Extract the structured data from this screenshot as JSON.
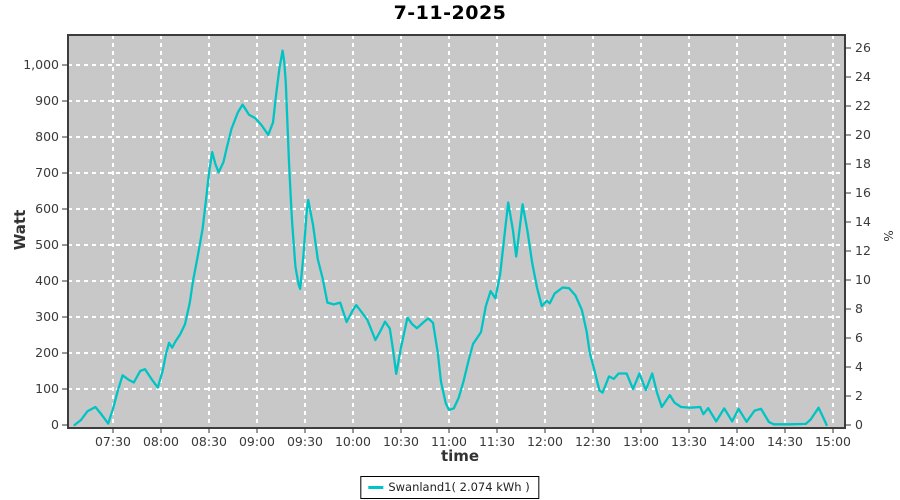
{
  "title": "7-11-2025",
  "legend": {
    "label": "Swanland1( 2.074 kWh )",
    "line_color": "#00c4c4"
  },
  "colors": {
    "page_bg": "#ffffff",
    "plot_bg": "#c8c8c8",
    "grid": "#ffffff",
    "line": "#00c4c4",
    "tick_text": "#3a3a3a",
    "border": "#3d3d3d"
  },
  "chart_data": {
    "type": "line",
    "title": "7-11-2025",
    "xlabel": "time",
    "ylabel_left": "Watt",
    "ylabel_right": "%",
    "grid": true,
    "legend_position": "bottom-center",
    "x_ticks": [
      "07:30",
      "08:00",
      "08:30",
      "09:00",
      "09:30",
      "10:00",
      "10:30",
      "11:00",
      "11:30",
      "12:00",
      "12:30",
      "13:00",
      "13:30",
      "14:00",
      "14:30",
      "15:00"
    ],
    "y_ticks_left": [
      "0",
      "100",
      "200",
      "300",
      "400",
      "500",
      "600",
      "700",
      "800",
      "900",
      "1,000"
    ],
    "y_ticks_right": [
      "0",
      "2",
      "4",
      "6",
      "8",
      "10",
      "12",
      "14",
      "16",
      "18",
      "20",
      "22",
      "24",
      "26"
    ],
    "x_range": [
      "07:02",
      "15:07"
    ],
    "ylim_left": [
      0,
      1086
    ],
    "ylim_right": [
      0,
      27
    ],
    "series": [
      {
        "name": "Swanland1( 2.074 kWh )",
        "color": "#00c4c4",
        "units": "Watt",
        "points": [
          [
            "07:06",
            0
          ],
          [
            "07:10",
            14
          ],
          [
            "07:14",
            38
          ],
          [
            "07:19",
            50
          ],
          [
            "07:23",
            28
          ],
          [
            "07:27",
            4
          ],
          [
            "07:30",
            45
          ],
          [
            "07:33",
            95
          ],
          [
            "07:36",
            138
          ],
          [
            "07:40",
            125
          ],
          [
            "07:43",
            118
          ],
          [
            "07:47",
            150
          ],
          [
            "07:50",
            155
          ],
          [
            "07:54",
            128
          ],
          [
            "07:58",
            104
          ],
          [
            "08:01",
            150
          ],
          [
            "08:03",
            195
          ],
          [
            "08:05",
            228
          ],
          [
            "08:07",
            215
          ],
          [
            "08:09",
            232
          ],
          [
            "08:12",
            252
          ],
          [
            "08:15",
            280
          ],
          [
            "08:18",
            340
          ],
          [
            "08:20",
            400
          ],
          [
            "08:23",
            470
          ],
          [
            "08:26",
            545
          ],
          [
            "08:28",
            620
          ],
          [
            "08:30",
            700
          ],
          [
            "08:32",
            758
          ],
          [
            "08:34",
            725
          ],
          [
            "08:36",
            702
          ],
          [
            "08:39",
            730
          ],
          [
            "08:41",
            768
          ],
          [
            "08:44",
            822
          ],
          [
            "08:48",
            868
          ],
          [
            "08:51",
            890
          ],
          [
            "08:55",
            862
          ],
          [
            "08:59",
            852
          ],
          [
            "09:03",
            832
          ],
          [
            "09:07",
            806
          ],
          [
            "09:10",
            840
          ],
          [
            "09:12",
            920
          ],
          [
            "09:14",
            990
          ],
          [
            "09:16",
            1040
          ],
          [
            "09:17",
            1010
          ],
          [
            "09:18",
            950
          ],
          [
            "09:19",
            840
          ],
          [
            "09:20",
            730
          ],
          [
            "09:21",
            640
          ],
          [
            "09:22",
            560
          ],
          [
            "09:24",
            440
          ],
          [
            "09:26",
            390
          ],
          [
            "09:27",
            378
          ],
          [
            "09:29",
            470
          ],
          [
            "09:31",
            590
          ],
          [
            "09:32",
            625
          ],
          [
            "09:35",
            556
          ],
          [
            "09:38",
            460
          ],
          [
            "09:41",
            408
          ],
          [
            "09:44",
            340
          ],
          [
            "09:48",
            335
          ],
          [
            "09:52",
            340
          ],
          [
            "09:56",
            286
          ],
          [
            "10:00",
            320
          ],
          [
            "10:02",
            333
          ],
          [
            "10:06",
            310
          ],
          [
            "10:09",
            292
          ],
          [
            "10:14",
            236
          ],
          [
            "10:17",
            260
          ],
          [
            "10:20",
            287
          ],
          [
            "10:23",
            268
          ],
          [
            "10:25",
            210
          ],
          [
            "10:27",
            142
          ],
          [
            "10:30",
            215
          ],
          [
            "10:34",
            298
          ],
          [
            "10:37",
            280
          ],
          [
            "10:40",
            269
          ],
          [
            "10:44",
            285
          ],
          [
            "10:47",
            296
          ],
          [
            "10:50",
            284
          ],
          [
            "10:53",
            200
          ],
          [
            "10:55",
            120
          ],
          [
            "10:58",
            60
          ],
          [
            "11:00",
            42
          ],
          [
            "11:03",
            46
          ],
          [
            "11:06",
            75
          ],
          [
            "11:09",
            120
          ],
          [
            "11:12",
            175
          ],
          [
            "11:15",
            225
          ],
          [
            "11:17",
            238
          ],
          [
            "11:20",
            258
          ],
          [
            "11:23",
            330
          ],
          [
            "11:26",
            372
          ],
          [
            "11:29",
            352
          ],
          [
            "11:32",
            420
          ],
          [
            "11:35",
            540
          ],
          [
            "11:37",
            618
          ],
          [
            "11:40",
            540
          ],
          [
            "11:42",
            468
          ],
          [
            "11:44",
            540
          ],
          [
            "11:46",
            613
          ],
          [
            "11:49",
            540
          ],
          [
            "11:52",
            450
          ],
          [
            "11:55",
            382
          ],
          [
            "11:58",
            330
          ],
          [
            "12:01",
            345
          ],
          [
            "12:03",
            338
          ],
          [
            "12:06",
            365
          ],
          [
            "12:11",
            382
          ],
          [
            "12:15",
            380
          ],
          [
            "12:19",
            360
          ],
          [
            "12:23",
            320
          ],
          [
            "12:26",
            260
          ],
          [
            "12:28",
            200
          ],
          [
            "12:31",
            150
          ],
          [
            "12:34",
            96
          ],
          [
            "12:36",
            90
          ],
          [
            "12:40",
            135
          ],
          [
            "12:43",
            128
          ],
          [
            "12:46",
            143
          ],
          [
            "12:51",
            143
          ],
          [
            "12:55",
            100
          ],
          [
            "12:59",
            143
          ],
          [
            "13:03",
            97
          ],
          [
            "13:07",
            143
          ],
          [
            "13:10",
            90
          ],
          [
            "13:13",
            50
          ],
          [
            "13:18",
            83
          ],
          [
            "13:21",
            62
          ],
          [
            "13:25",
            50
          ],
          [
            "13:31",
            48
          ],
          [
            "13:37",
            50
          ],
          [
            "13:39",
            30
          ],
          [
            "13:42",
            47
          ],
          [
            "13:47",
            10
          ],
          [
            "13:52",
            46
          ],
          [
            "13:57",
            10
          ],
          [
            "14:01",
            45
          ],
          [
            "14:06",
            9
          ],
          [
            "14:11",
            40
          ],
          [
            "14:15",
            45
          ],
          [
            "14:20",
            8
          ],
          [
            "14:23",
            2
          ],
          [
            "14:33",
            2
          ],
          [
            "14:43",
            3
          ],
          [
            "14:46",
            15
          ],
          [
            "14:51",
            48
          ],
          [
            "14:55",
            10
          ],
          [
            "14:56",
            0
          ]
        ]
      }
    ]
  }
}
